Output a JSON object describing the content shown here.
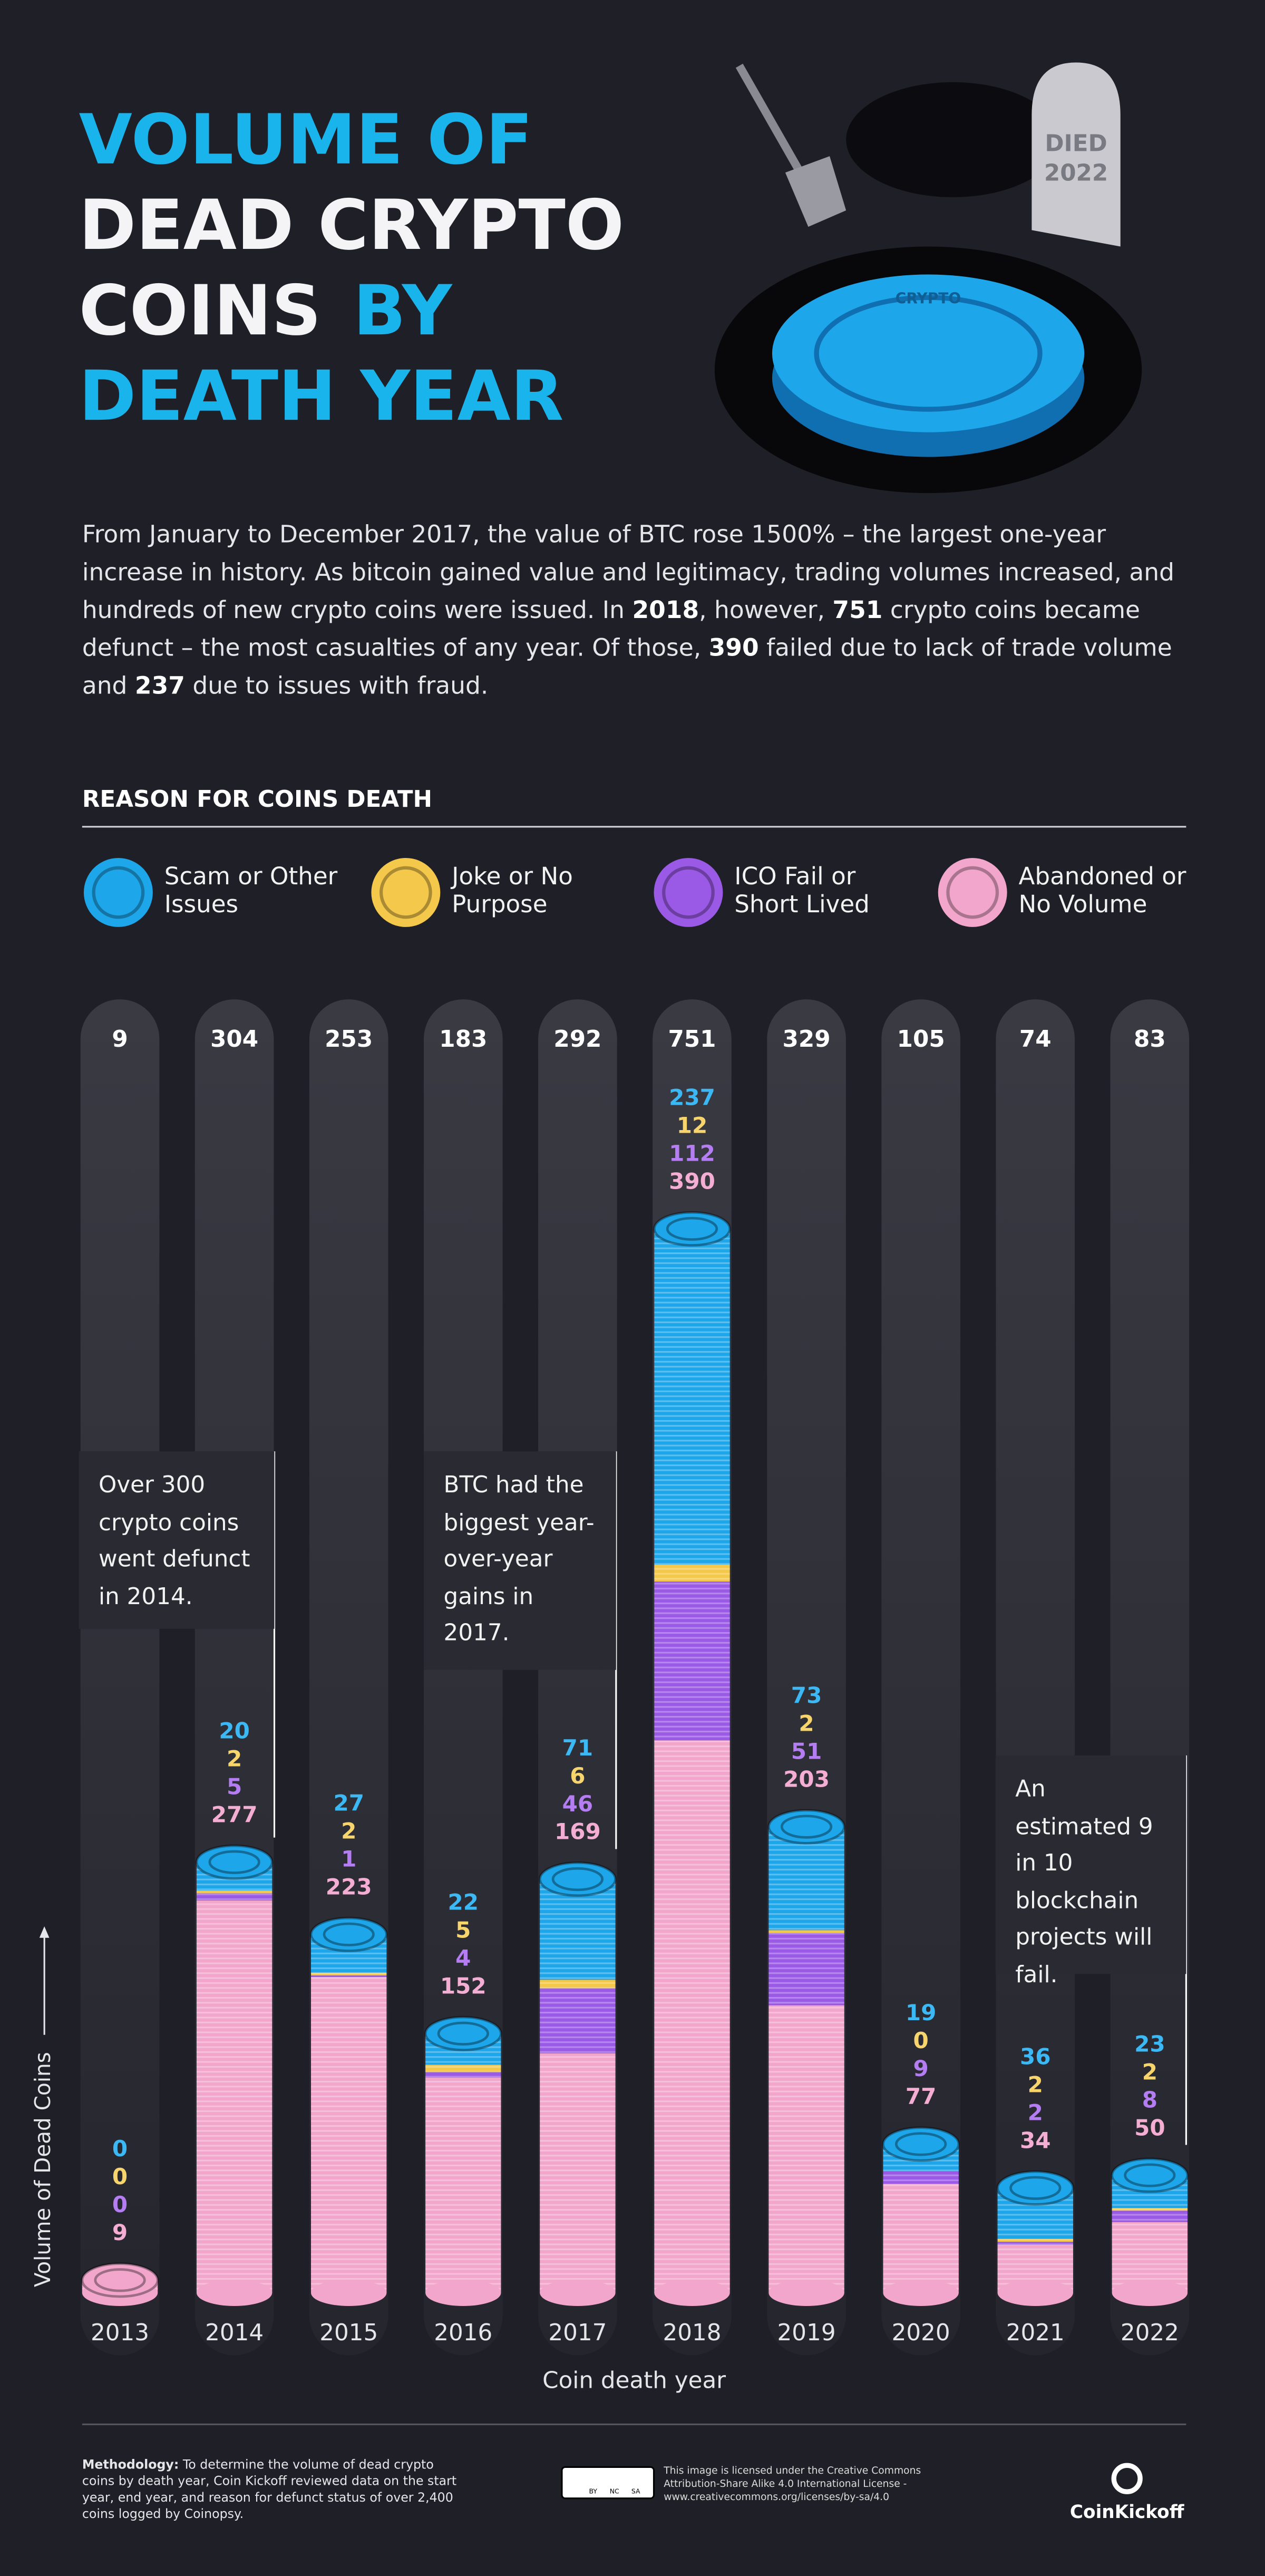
{
  "chart_data": {
    "type": "bar",
    "stacked": true,
    "title_parts": [
      "VOLUME OF",
      "DEAD CRYPTO",
      "COINS",
      "BY",
      "DEATH YEAR"
    ],
    "illustration_text": [
      "DIED",
      "2022",
      "CRYPTO"
    ],
    "intro": [
      "From January to December 2017, the value of BTC rose 1500% – the largest one-year increase in history. As bitcoin gained value and legitimacy, trading volumes increased, and hundreds of new crypto coins were issued. In ",
      "2018",
      ", however, ",
      "751",
      " crypto coins became defunct – the most casualties of any year. Of those, ",
      "390",
      " failed due to lack of trade volume and ",
      "237",
      " due to issues with fraud."
    ],
    "legend_title": "REASON FOR COINS DEATH",
    "categories": [
      "2013",
      "2014",
      "2015",
      "2016",
      "2017",
      "2018",
      "2019",
      "2020",
      "2021",
      "2022"
    ],
    "series": [
      {
        "name": "Scam or Other Issues",
        "color": "#1ea6ea",
        "label_color": "#3cb8f4",
        "values": [
          0,
          20,
          27,
          22,
          71,
          237,
          73,
          19,
          36,
          23
        ]
      },
      {
        "name": "Joke or No Purpose",
        "color": "#f4c84a",
        "label_color": "#f7d46c",
        "values": [
          0,
          2,
          2,
          5,
          6,
          12,
          2,
          0,
          2,
          2
        ]
      },
      {
        "name": "ICO Fail or Short Lived",
        "color": "#9a5ae6",
        "label_color": "#b57df2",
        "values": [
          0,
          5,
          1,
          4,
          46,
          112,
          51,
          9,
          2,
          8
        ]
      },
      {
        "name": "Abandoned or No Volume",
        "color": "#f2a6cc",
        "label_color": "#f5aed3",
        "values": [
          9,
          277,
          223,
          152,
          169,
          390,
          203,
          77,
          34,
          50
        ]
      }
    ],
    "totals": [
      9,
      304,
      253,
      183,
      292,
      751,
      329,
      105,
      74,
      83
    ],
    "annotations": [
      "Over 300 crypto coins went defunct in 2014.",
      "BTC had the biggest year-over-year gains in 2017.",
      "An estimated 9 in 10 blockchain projects will fail."
    ],
    "ylabel": "Volume of Dead Coins",
    "xlabel": "Coin death year",
    "methodology": [
      "Methodology:",
      " To determine the volume of dead crypto coins by death year, Coin Kickoff reviewed data on the start year, end year, and reason for defunct status of over 2,400 coins logged by Coinopsy."
    ],
    "license_badge": [
      "BY",
      "NC",
      "SA"
    ],
    "license": "This image is licensed under the Creative Commons Attribution-Share Alike 4.0 International License - www.creativecommons.org/licenses/by-sa/4.0",
    "logo": "CoinKickoff"
  }
}
